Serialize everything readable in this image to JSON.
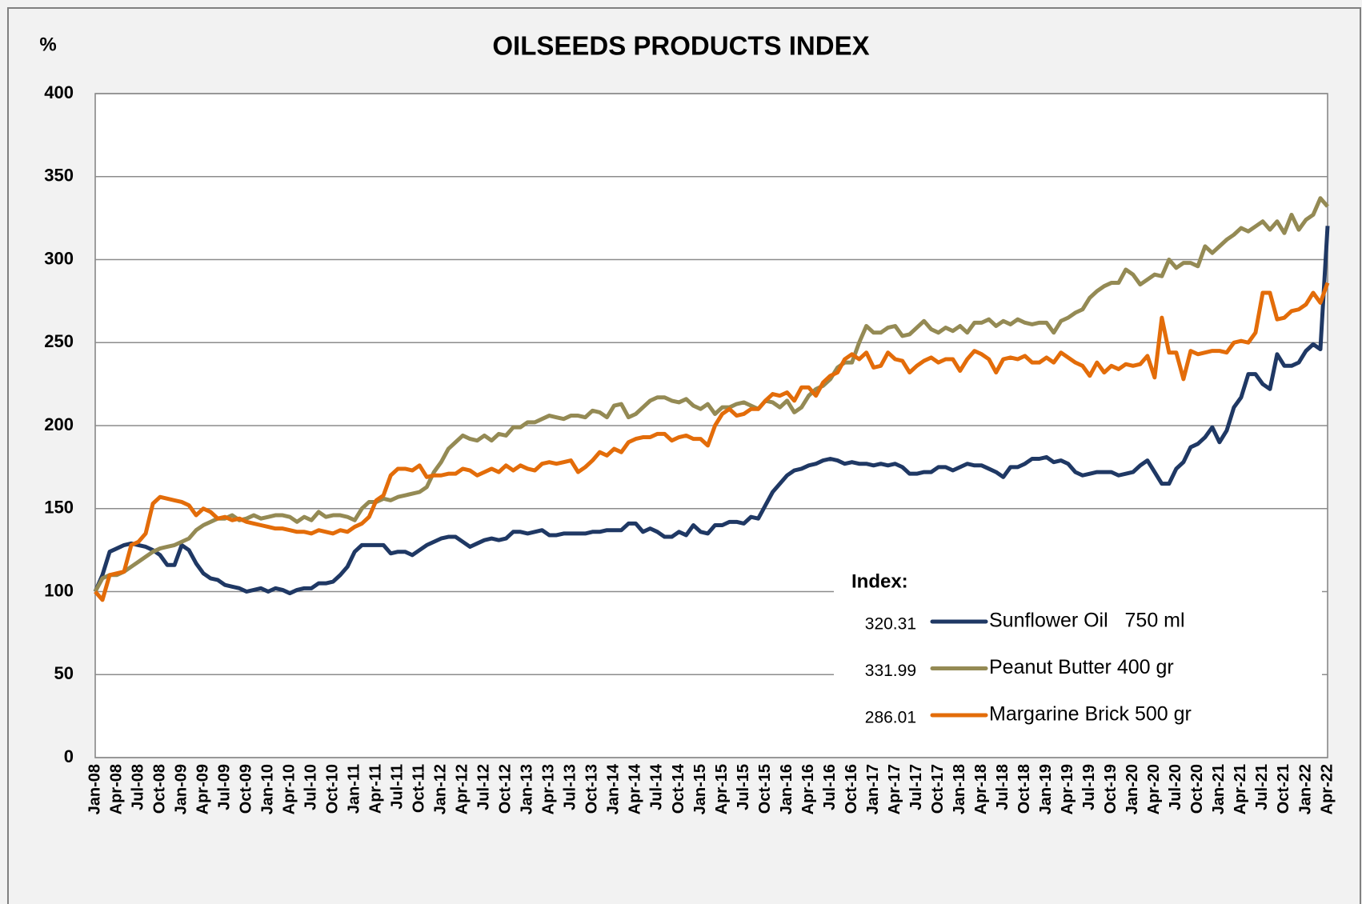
{
  "chart_data": {
    "type": "line",
    "title": "OILSEEDS PRODUCTS INDEX",
    "y_label": "%",
    "legend_title": "Index:",
    "categories": [
      "Jan-08",
      null,
      null,
      "Apr-08",
      null,
      null,
      "Jul-08",
      null,
      null,
      "Oct-08",
      null,
      null,
      "Jan-09",
      null,
      null,
      "Apr-09",
      null,
      null,
      "Jul-09",
      null,
      null,
      "Oct-09",
      null,
      null,
      "Jan-10",
      null,
      null,
      "Apr-10",
      null,
      null,
      "Jul-10",
      null,
      null,
      "Oct-10",
      null,
      null,
      "Jan-11",
      null,
      null,
      "Apr-11",
      null,
      null,
      "Jul-11",
      null,
      null,
      "Oct-11",
      null,
      null,
      "Jan-12",
      null,
      null,
      "Apr-12",
      null,
      null,
      "Jul-12",
      null,
      null,
      "Oct-12",
      null,
      null,
      "Jan-13",
      null,
      null,
      "Apr-13",
      null,
      null,
      "Jul-13",
      null,
      null,
      "Oct-13",
      null,
      null,
      "Jan-14",
      null,
      null,
      "Apr-14",
      null,
      null,
      "Jul-14",
      null,
      null,
      "Oct-14",
      null,
      null,
      "Jan-15",
      null,
      null,
      "Apr-15",
      null,
      null,
      "Jul-15",
      null,
      null,
      "Oct-15",
      null,
      null,
      "Jan-16",
      null,
      null,
      "Apr-16",
      null,
      null,
      "Jul-16",
      null,
      null,
      "Oct-16",
      null,
      null,
      "Jan-17",
      null,
      null,
      "Apr-17",
      null,
      null,
      "Jul-17",
      null,
      null,
      "Oct-17",
      null,
      null,
      "Jan-18",
      null,
      null,
      "Apr-18",
      null,
      null,
      "Jul-18",
      null,
      null,
      "Oct-18",
      null,
      null,
      "Jan-19",
      null,
      null,
      "Apr-19",
      null,
      null,
      "Jul-19",
      null,
      null,
      "Oct-19",
      null,
      null,
      "Jan-20",
      null,
      null,
      "Apr-20",
      null,
      null,
      "Jul-20",
      null,
      null,
      "Oct-20",
      null,
      null,
      "Jan-21",
      null,
      null,
      "Apr-21",
      null,
      null,
      "Jul-21",
      null,
      null,
      "Oct-21",
      null,
      null,
      "Jan-22",
      null,
      null,
      "Apr-22"
    ],
    "series": [
      {
        "name": "Sunflower Oil   750 ml",
        "color": "#1f3864",
        "values": [
          100,
          110,
          124,
          126,
          128,
          129,
          128,
          127,
          125,
          122,
          116,
          116,
          128,
          125,
          117,
          111,
          108,
          107,
          104,
          103,
          102,
          100,
          101,
          102,
          100,
          102,
          101,
          99,
          101,
          102,
          102,
          105,
          105,
          106,
          110,
          115,
          124,
          128,
          128,
          128,
          128,
          123,
          124,
          124,
          122,
          125,
          128,
          130,
          132,
          133,
          133,
          130,
          127,
          129,
          131,
          132,
          131,
          132,
          136,
          136,
          135,
          136,
          137,
          134,
          134,
          135,
          135,
          135,
          135,
          136,
          136,
          137,
          137,
          137,
          141,
          141,
          136,
          138,
          136,
          133,
          133,
          136,
          134,
          140,
          136,
          135,
          140,
          140,
          142,
          142,
          141,
          145,
          144,
          152,
          160,
          165,
          170,
          173,
          174,
          176,
          177,
          179,
          180,
          179,
          177,
          178,
          177,
          177,
          176,
          177,
          176,
          177,
          175,
          171,
          171,
          172,
          172,
          175,
          175,
          173,
          175,
          177,
          176,
          176,
          174,
          172,
          169,
          175,
          175,
          177,
          180,
          180,
          181,
          178,
          179,
          177,
          172,
          170,
          171,
          172,
          172,
          172,
          170,
          171,
          172,
          176,
          179,
          172,
          165,
          165,
          174,
          178,
          187,
          189,
          193,
          199,
          190,
          197,
          211,
          217,
          231,
          231,
          225,
          222,
          243,
          236,
          236,
          238,
          245,
          249,
          246,
          320.31
        ]
      },
      {
        "name": "Peanut Butter 400 gr",
        "color": "#948a54",
        "values": [
          100,
          108,
          110,
          110,
          112,
          115,
          118,
          121,
          124,
          126,
          127,
          128,
          130,
          132,
          137,
          140,
          142,
          144,
          144,
          146,
          143,
          144,
          146,
          144,
          145,
          146,
          146,
          145,
          142,
          145,
          143,
          148,
          145,
          146,
          146,
          145,
          143,
          150,
          154,
          154,
          156,
          155,
          157,
          158,
          159,
          160,
          163,
          172,
          178,
          186,
          190,
          194,
          192,
          191,
          194,
          191,
          195,
          194,
          199,
          199,
          202,
          202,
          204,
          206,
          205,
          204,
          206,
          206,
          205,
          209,
          208,
          205,
          212,
          213,
          205,
          207,
          211,
          215,
          217,
          217,
          215,
          214,
          216,
          212,
          210,
          213,
          207,
          211,
          211,
          213,
          214,
          212,
          210,
          215,
          214,
          211,
          215,
          208,
          211,
          218,
          222,
          224,
          228,
          235,
          238,
          238,
          250,
          260,
          256,
          256,
          259,
          260,
          254,
          255,
          259,
          263,
          258,
          256,
          259,
          257,
          260,
          256,
          262,
          262,
          264,
          260,
          263,
          261,
          264,
          262,
          261,
          262,
          262,
          256,
          263,
          265,
          268,
          270,
          277,
          281,
          284,
          286,
          286,
          294,
          291,
          285,
          288,
          291,
          290,
          300,
          295,
          298,
          298,
          296,
          308,
          304,
          308,
          312,
          315,
          319,
          317,
          320,
          323,
          318,
          323,
          316,
          327,
          318,
          324,
          327,
          337,
          331.99
        ]
      },
      {
        "name": "Margarine Brick 500 gr",
        "color": "#e36c09",
        "values": [
          100,
          95,
          110,
          111,
          112,
          128,
          130,
          135,
          153,
          157,
          156,
          155,
          154,
          152,
          146,
          150,
          148,
          144,
          145,
          143,
          144,
          142,
          141,
          140,
          139,
          138,
          138,
          137,
          136,
          136,
          135,
          137,
          136,
          135,
          137,
          136,
          139,
          141,
          145,
          155,
          158,
          170,
          174,
          174,
          173,
          176,
          169,
          170,
          170,
          171,
          171,
          174,
          173,
          170,
          172,
          174,
          172,
          176,
          173,
          176,
          174,
          173,
          177,
          178,
          177,
          178,
          179,
          172,
          175,
          179,
          184,
          182,
          186,
          184,
          190,
          192,
          193,
          193,
          195,
          195,
          191,
          193,
          194,
          192,
          192,
          188,
          200,
          207,
          210,
          206,
          207,
          210,
          210,
          215,
          219,
          218,
          220,
          215,
          223,
          223,
          218,
          226,
          230,
          232,
          240,
          243,
          240,
          244,
          235,
          236,
          244,
          240,
          239,
          232,
          236,
          239,
          241,
          238,
          240,
          240,
          233,
          240,
          245,
          243,
          240,
          232,
          240,
          241,
          240,
          242,
          238,
          238,
          241,
          238,
          244,
          241,
          238,
          236,
          230,
          238,
          232,
          236,
          234,
          237,
          236,
          237,
          242,
          229,
          265,
          244,
          244,
          228,
          245,
          243,
          244,
          245,
          245,
          244,
          250,
          251,
          250,
          256,
          280,
          280,
          264,
          265,
          269,
          270,
          273,
          280,
          274,
          286.01
        ]
      }
    ],
    "ylim": [
      0,
      400
    ],
    "yticks": [
      0,
      50,
      100,
      150,
      200,
      250,
      300,
      350,
      400
    ],
    "grid": true
  }
}
